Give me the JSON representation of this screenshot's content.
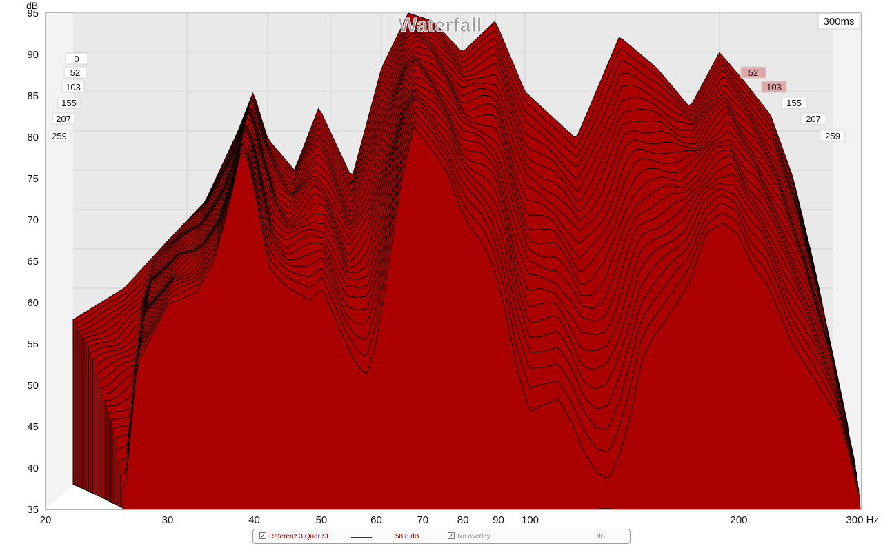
{
  "chart_data": {
    "type": "area",
    "title": "Waterfall",
    "time_label": "300ms",
    "ylabel": "dB",
    "ylim": [
      35,
      95
    ],
    "y_ticks": [
      35,
      40,
      45,
      50,
      55,
      60,
      65,
      70,
      75,
      80,
      85,
      90,
      95
    ],
    "xlim": [
      20,
      300
    ],
    "x_scale": "log",
    "x_ticks": [
      20,
      30,
      40,
      50,
      60,
      70,
      80,
      90,
      100,
      200
    ],
    "x_end_label": "300 Hz",
    "time_slices_ms": [
      "0",
      "52",
      "103",
      "155",
      "207",
      "259"
    ],
    "front_slice": {
      "freq": [
        26,
        27,
        30,
        33,
        35,
        37,
        38,
        39,
        40,
        42,
        45,
        48,
        50,
        53,
        56,
        58,
        60,
        62,
        65,
        68,
        72,
        76,
        79,
        82,
        85,
        88,
        92,
        96,
        100,
        110,
        115,
        120,
        125,
        130,
        135,
        140,
        145,
        150,
        155,
        160,
        170,
        180,
        190,
        200,
        210,
        220,
        230,
        240,
        250,
        260,
        270,
        280,
        290,
        300
      ],
      "db": [
        35,
        51,
        59,
        60,
        64,
        72,
        77,
        77,
        73,
        63,
        60,
        58,
        60,
        55,
        50,
        48,
        52,
        60,
        72,
        80,
        77,
        74,
        70,
        67,
        65,
        62,
        56,
        48,
        43,
        45,
        42,
        38,
        35,
        34,
        37,
        42,
        49,
        52,
        54,
        56,
        60,
        67,
        68,
        66,
        62,
        60,
        56,
        52,
        50,
        48,
        46,
        44,
        40,
        35
      ]
    },
    "back_slice_peak": {
      "freq": [
        20,
        24,
        28,
        32,
        36,
        38,
        40,
        44,
        48,
        54,
        60,
        66,
        72,
        80,
        90,
        100,
        120,
        140,
        160,
        180,
        200,
        220,
        240,
        260,
        280,
        300
      ],
      "db": [
        56,
        60,
        66,
        71,
        80,
        85,
        79,
        75,
        83,
        74,
        88,
        95,
        94,
        90,
        94,
        85,
        79,
        92,
        88,
        83,
        90,
        86,
        82,
        74,
        63,
        50
      ]
    },
    "series": [
      {
        "name": "Referenz 3 Quer St",
        "color": "#b00000",
        "level": "58,8 dB"
      }
    ],
    "grid": true
  },
  "legend": {
    "series_label": "Referenz 3 Quer St",
    "level": "58,8 dB",
    "overlay_label": "No overlay",
    "unit": "dB"
  },
  "colors": {
    "fill": "#ab0000",
    "stroke": "#000000",
    "back_wall": "#e9e9e9",
    "grid": "#cfcfcf"
  }
}
